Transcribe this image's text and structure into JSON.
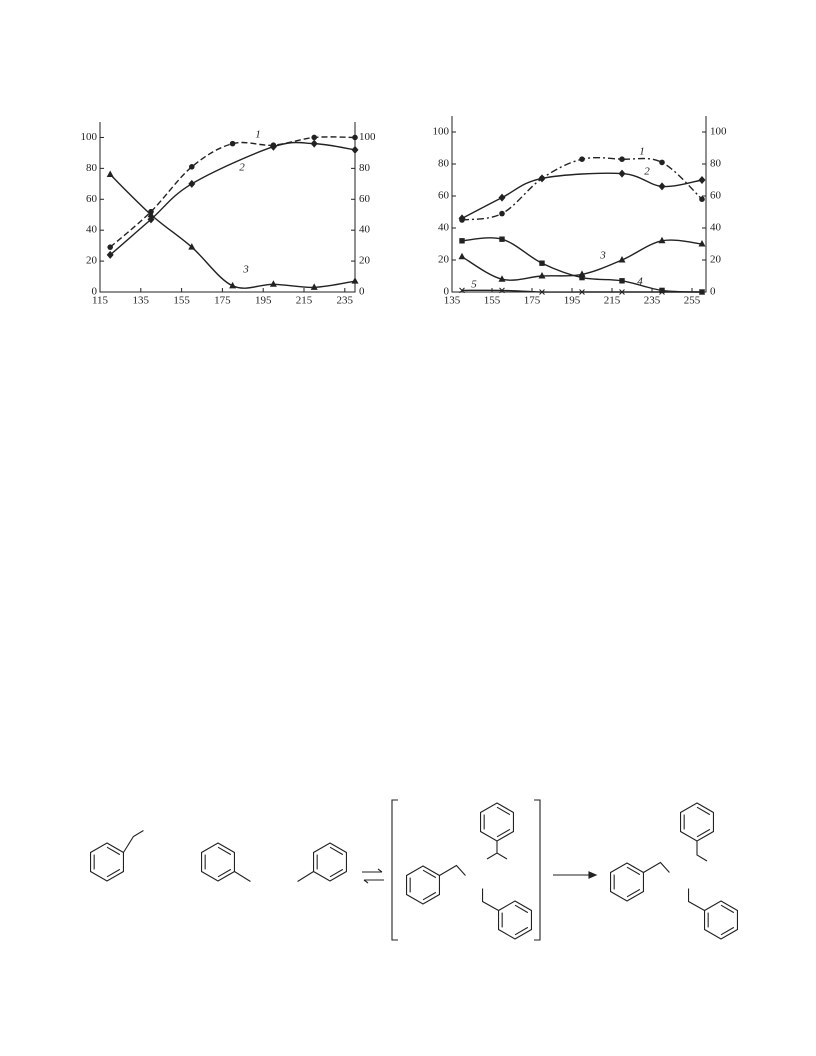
{
  "chart_data": [
    {
      "type": "line",
      "xlim": [
        115,
        240
      ],
      "xticks": [
        115,
        135,
        155,
        175,
        195,
        215,
        235
      ],
      "ylim": [
        0,
        110
      ],
      "yticks": [
        0,
        20,
        40,
        60,
        80,
        100
      ],
      "y2lim": [
        0,
        110
      ],
      "y2ticks": [
        0,
        20,
        40,
        60,
        80,
        100
      ],
      "series": [
        {
          "name": "1",
          "color": "#222",
          "marker": "circle",
          "dash": "dashed",
          "x": [
            120,
            140,
            160,
            180,
            200,
            220,
            240
          ],
          "values": [
            29,
            52,
            81,
            96,
            95,
            100,
            100
          ]
        },
        {
          "name": "2",
          "color": "#222",
          "marker": "diamond",
          "dash": "solid",
          "x": [
            120,
            140,
            160,
            200,
            220,
            240
          ],
          "values": [
            24,
            47,
            70,
            94,
            96,
            92
          ]
        },
        {
          "name": "3",
          "color": "#222",
          "marker": "triangle",
          "dash": "solid",
          "x": [
            120,
            140,
            160,
            180,
            200,
            220,
            240
          ],
          "values": [
            76,
            50,
            29,
            4,
            5,
            3,
            7
          ]
        }
      ]
    },
    {
      "type": "line",
      "xlim": [
        135,
        262
      ],
      "xticks": [
        135,
        155,
        175,
        195,
        215,
        235,
        255
      ],
      "ylim": [
        0,
        110
      ],
      "yticks": [
        0,
        20,
        40,
        60,
        80,
        100
      ],
      "y2lim": [
        0,
        110
      ],
      "y2ticks": [
        0,
        20,
        40,
        60,
        80,
        100
      ],
      "series": [
        {
          "name": "1",
          "color": "#222",
          "marker": "circle",
          "dash": "dashdot",
          "x": [
            140,
            160,
            180,
            200,
            220,
            240,
            260
          ],
          "values": [
            45,
            49,
            71,
            83,
            83,
            81,
            58
          ]
        },
        {
          "name": "2",
          "color": "#222",
          "marker": "diamond",
          "dash": "solid",
          "x": [
            140,
            160,
            180,
            220,
            240,
            260
          ],
          "values": [
            46,
            59,
            71,
            74,
            66,
            70
          ]
        },
        {
          "name": "3",
          "color": "#222",
          "marker": "triangle",
          "dash": "solid",
          "x": [
            140,
            160,
            180,
            200,
            220,
            240,
            260
          ],
          "values": [
            22,
            8,
            10,
            11,
            20,
            32,
            30
          ]
        },
        {
          "name": "4",
          "color": "#222",
          "marker": "square",
          "dash": "solid",
          "x": [
            140,
            160,
            180,
            200,
            220,
            240,
            260
          ],
          "values": [
            32,
            33,
            18,
            9,
            7,
            1,
            0
          ]
        },
        {
          "name": "5",
          "color": "#222",
          "marker": "cross",
          "dash": "solid",
          "x": [
            140,
            160,
            180,
            200,
            220,
            240,
            260
          ],
          "values": [
            1,
            1,
            0,
            0,
            0,
            0,
            0
          ]
        }
      ]
    }
  ]
}
